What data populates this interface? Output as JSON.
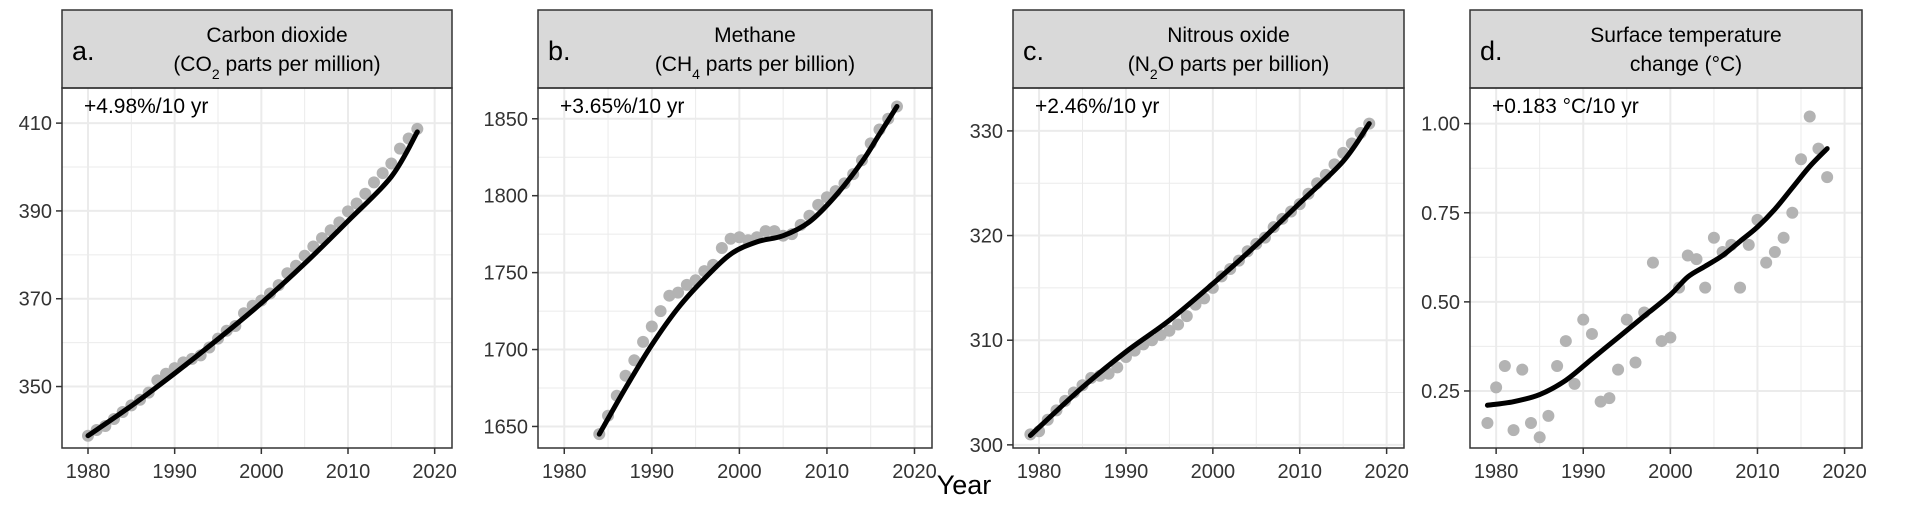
{
  "shared_xlabel": "Year",
  "colors": {
    "points": "#b3b3b3",
    "line": "#000000",
    "header": "#d9d9d9",
    "grid": "#ebebeb",
    "frame": "#333333"
  },
  "chart_data": [
    {
      "type": "scatter",
      "panel_letter": "a.",
      "title_line1": "Carbon dioxide",
      "title_line2_pre": "(CO",
      "title_line2_sub": "2",
      "title_line2_post": " parts per million)",
      "annotation": "+4.98%/10 yr",
      "xlim": [
        1977,
        2022
      ],
      "ylim": [
        336,
        418
      ],
      "xticks": [
        1980,
        1990,
        2000,
        2010,
        2020
      ],
      "yticks": [
        350,
        370,
        390,
        410
      ],
      "grid": true,
      "x": [
        1980,
        1981,
        1982,
        1983,
        1984,
        1985,
        1986,
        1987,
        1988,
        1989,
        1990,
        1991,
        1992,
        1993,
        1994,
        1995,
        1996,
        1997,
        1998,
        1999,
        2000,
        2001,
        2002,
        2003,
        2004,
        2005,
        2006,
        2007,
        2008,
        2009,
        2010,
        2011,
        2012,
        2013,
        2014,
        2015,
        2016,
        2017,
        2018
      ],
      "y": [
        338.8,
        340.1,
        341.0,
        342.6,
        344.2,
        345.7,
        347.0,
        348.6,
        351.4,
        352.9,
        354.2,
        355.5,
        356.3,
        357.1,
        358.9,
        360.9,
        362.7,
        363.8,
        366.7,
        368.4,
        369.6,
        371.2,
        373.1,
        375.8,
        377.5,
        379.8,
        381.9,
        383.8,
        385.6,
        387.4,
        389.9,
        391.7,
        393.9,
        396.5,
        398.6,
        400.8,
        404.2,
        406.5,
        408.7
      ],
      "fit": [
        [
          1980,
          338.8
        ],
        [
          1985,
          345.6
        ],
        [
          1990,
          353.0
        ],
        [
          1995,
          360.8
        ],
        [
          2000,
          369.0
        ],
        [
          2005,
          378.0
        ],
        [
          2010,
          387.7
        ],
        [
          2015,
          397.8
        ],
        [
          2018,
          408.0
        ]
      ]
    },
    {
      "type": "scatter",
      "panel_letter": "b.",
      "title_line1": "Methane",
      "title_line2_pre": "(CH",
      "title_line2_sub": "4",
      "title_line2_post": " parts per billion)",
      "annotation": "+3.65%/10 yr",
      "xlim": [
        1977,
        2022
      ],
      "ylim": [
        1636,
        1870
      ],
      "xticks": [
        1980,
        1990,
        2000,
        2010,
        2020
      ],
      "yticks": [
        1650,
        1700,
        1750,
        1800,
        1850
      ],
      "grid": true,
      "x": [
        1984,
        1985,
        1986,
        1987,
        1988,
        1989,
        1990,
        1991,
        1992,
        1993,
        1994,
        1995,
        1996,
        1997,
        1998,
        1999,
        2000,
        2001,
        2002,
        2003,
        2004,
        2005,
        2006,
        2007,
        2008,
        2009,
        2010,
        2011,
        2012,
        2013,
        2014,
        2015,
        2016,
        2017,
        2018
      ],
      "y": [
        1645,
        1657,
        1670,
        1683,
        1693,
        1705,
        1715,
        1725,
        1735,
        1737,
        1742,
        1745,
        1751,
        1755,
        1766,
        1772,
        1773,
        1771,
        1773,
        1777,
        1777,
        1774,
        1775,
        1781,
        1787,
        1794,
        1799,
        1803,
        1808,
        1814,
        1823,
        1834,
        1843,
        1850,
        1858
      ],
      "fit": [
        [
          1984,
          1645
        ],
        [
          1987,
          1675
        ],
        [
          1990,
          1703
        ],
        [
          1993,
          1727
        ],
        [
          1996,
          1746
        ],
        [
          1999,
          1762
        ],
        [
          2002,
          1770
        ],
        [
          2005,
          1774
        ],
        [
          2008,
          1783
        ],
        [
          2011,
          1800
        ],
        [
          2014,
          1822
        ],
        [
          2016,
          1840
        ],
        [
          2018,
          1858
        ]
      ]
    },
    {
      "type": "scatter",
      "panel_letter": "c.",
      "title_line1": "Nitrous oxide",
      "title_line2_pre": "(N",
      "title_line2_sub": "2",
      "title_line2_post": "O parts per billion)",
      "annotation": "+2.46%/10 yr",
      "xlim": [
        1977,
        2022
      ],
      "ylim": [
        299.7,
        334.1
      ],
      "xticks": [
        1980,
        1990,
        2000,
        2010,
        2020
      ],
      "yticks": [
        300,
        310,
        320,
        330
      ],
      "grid": true,
      "x": [
        1979,
        1980,
        1981,
        1982,
        1983,
        1984,
        1985,
        1986,
        1987,
        1988,
        1989,
        1990,
        1991,
        1992,
        1993,
        1994,
        1995,
        1996,
        1997,
        1998,
        1999,
        2000,
        2001,
        2002,
        2003,
        2004,
        2005,
        2006,
        2007,
        2008,
        2009,
        2010,
        2011,
        2012,
        2013,
        2014,
        2015,
        2016,
        2017,
        2018
      ],
      "y": [
        301.0,
        301.3,
        302.4,
        303.3,
        304.2,
        305.0,
        305.7,
        306.4,
        306.6,
        306.8,
        307.4,
        308.4,
        309.0,
        309.6,
        310.0,
        310.5,
        310.9,
        311.5,
        312.3,
        313.4,
        314.0,
        315.0,
        316.1,
        316.8,
        317.6,
        318.5,
        319.2,
        319.8,
        320.8,
        321.6,
        322.3,
        323.0,
        324.0,
        325.0,
        325.8,
        326.8,
        327.9,
        328.8,
        329.8,
        330.7
      ],
      "fit": [
        [
          1979,
          300.9
        ],
        [
          1985,
          305.5
        ],
        [
          1990,
          308.9
        ],
        [
          1995,
          311.9
        ],
        [
          2000,
          315.4
        ],
        [
          2005,
          319.1
        ],
        [
          2010,
          323.1
        ],
        [
          2015,
          327.1
        ],
        [
          2018,
          330.7
        ]
      ]
    },
    {
      "type": "scatter",
      "panel_letter": "d.",
      "title_line1": "Surface temperature",
      "title_line2_pre": "change (°C)",
      "title_line2_sub": "",
      "title_line2_post": "",
      "annotation": "+0.183 °C/10 yr",
      "xlim": [
        1977,
        2022
      ],
      "ylim": [
        0.09,
        1.1
      ],
      "xticks": [
        1980,
        1990,
        2000,
        2010,
        2020
      ],
      "yticks": [
        0.25,
        0.5,
        0.75,
        1.0
      ],
      "ytick_labels": [
        "0.25",
        "0.50",
        "0.75",
        "1.00"
      ],
      "grid": true,
      "x": [
        1979,
        1980,
        1981,
        1982,
        1983,
        1984,
        1985,
        1986,
        1987,
        1988,
        1989,
        1990,
        1991,
        1992,
        1993,
        1994,
        1995,
        1996,
        1997,
        1998,
        1999,
        2000,
        2001,
        2002,
        2003,
        2004,
        2005,
        2006,
        2007,
        2008,
        2009,
        2010,
        2011,
        2012,
        2013,
        2014,
        2015,
        2016,
        2017,
        2018
      ],
      "y": [
        0.16,
        0.26,
        0.32,
        0.14,
        0.31,
        0.16,
        0.12,
        0.18,
        0.32,
        0.39,
        0.27,
        0.45,
        0.41,
        0.22,
        0.23,
        0.31,
        0.45,
        0.33,
        0.47,
        0.61,
        0.39,
        0.4,
        0.54,
        0.63,
        0.62,
        0.54,
        0.68,
        0.64,
        0.66,
        0.54,
        0.66,
        0.73,
        0.61,
        0.64,
        0.68,
        0.75,
        0.9,
        1.02,
        0.93,
        0.85
      ],
      "fit": [
        [
          1979,
          0.21
        ],
        [
          1982,
          0.22
        ],
        [
          1985,
          0.24
        ],
        [
          1988,
          0.28
        ],
        [
          1991,
          0.34
        ],
        [
          1994,
          0.4
        ],
        [
          1997,
          0.46
        ],
        [
          2000,
          0.52
        ],
        [
          2002,
          0.57
        ],
        [
          2004,
          0.6
        ],
        [
          2006,
          0.63
        ],
        [
          2008,
          0.67
        ],
        [
          2010,
          0.71
        ],
        [
          2012,
          0.76
        ],
        [
          2014,
          0.82
        ],
        [
          2016,
          0.88
        ],
        [
          2018,
          0.93
        ]
      ]
    }
  ]
}
